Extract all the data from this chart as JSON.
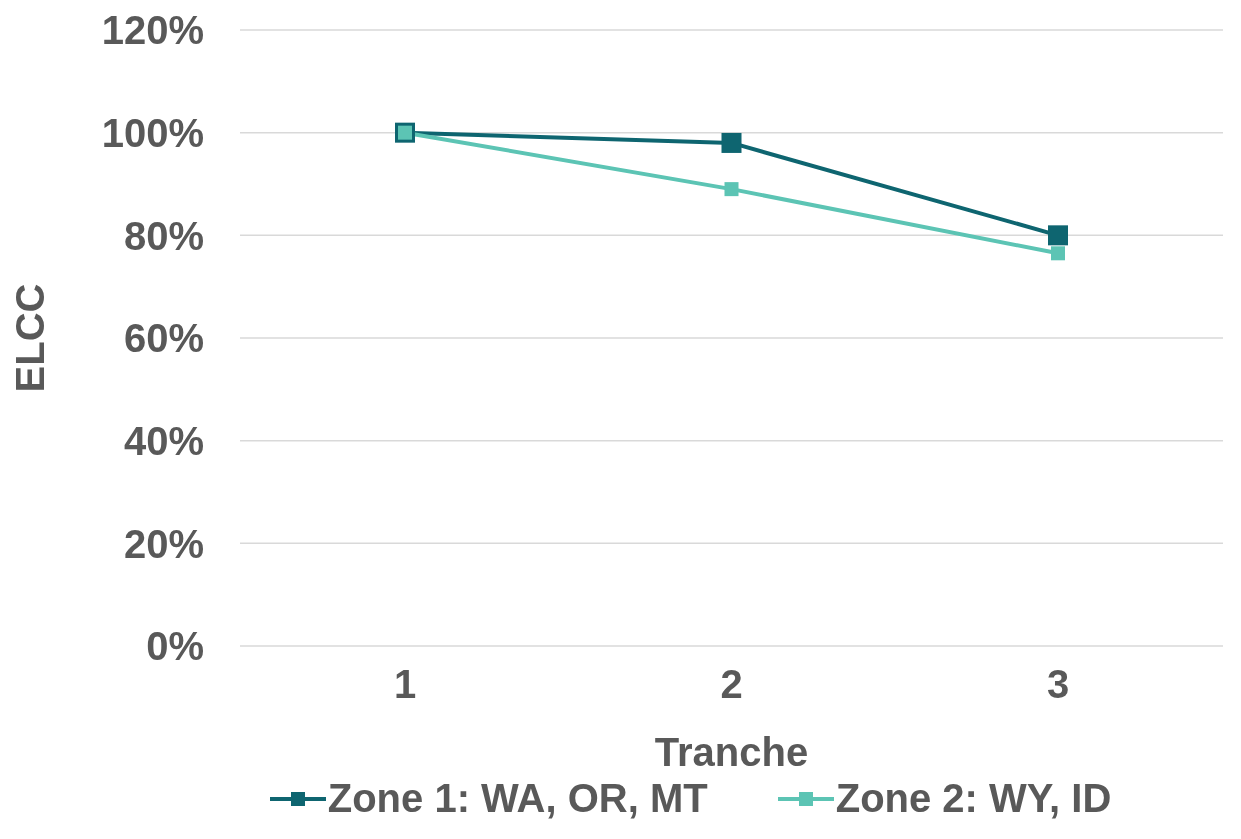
{
  "chart_data": {
    "type": "line",
    "xlabel": "Tranche",
    "ylabel": "ELCC",
    "categories": [
      "1",
      "2",
      "3"
    ],
    "series": [
      {
        "name": "Zone 1: WA, OR, MT",
        "color": "#0e6570",
        "values": [
          100,
          98,
          80
        ]
      },
      {
        "name": "Zone 2: WY, ID",
        "color": "#5cc4b4",
        "values": [
          100,
          89,
          76.5
        ]
      }
    ],
    "ylim": [
      0,
      120
    ],
    "yticks": [
      {
        "value": 0,
        "label": "0%"
      },
      {
        "value": 20,
        "label": "20%"
      },
      {
        "value": 40,
        "label": "40%"
      },
      {
        "value": 60,
        "label": "60%"
      },
      {
        "value": 80,
        "label": "80%"
      },
      {
        "value": 100,
        "label": "100%"
      },
      {
        "value": 120,
        "label": "120%"
      }
    ],
    "grid": "y",
    "legend": "bottom",
    "marker": "square",
    "line_style": "solid"
  }
}
